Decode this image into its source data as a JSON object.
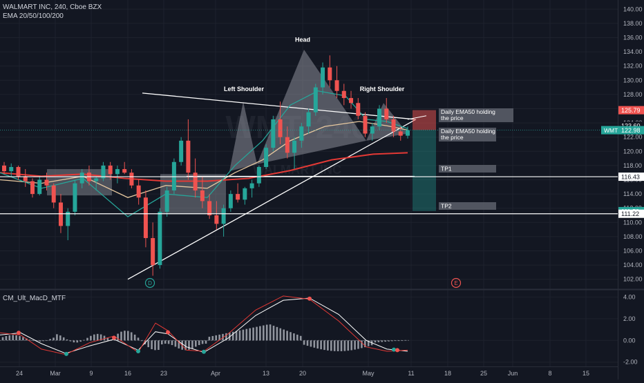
{
  "header": {
    "symbol_line": "WALMART INC, 240, Cboe BZX",
    "indicator_line": "EMA 20/50/100/200",
    "macd_label": "CM_Ult_MacD_MTF"
  },
  "colors": {
    "background": "#131722",
    "up": "#26a69a",
    "down": "#ef5350",
    "ema20": "#26a69a",
    "ema50": "#e8c9a0",
    "ema100": "#e53935",
    "ema200": "#e53935",
    "grid": "#1e222d",
    "macd_fast": "#e53935",
    "macd_signal": "#ffffff",
    "histogram": "#b2b5be"
  },
  "chart_data": {
    "type": "candlestick",
    "symbol": "WMT",
    "timeframe": "240",
    "exchange": "Cboe BZX",
    "y_axis": {
      "ylim": [
        101,
        141
      ],
      "ticks": [
        102,
        104,
        106,
        108,
        110,
        112,
        114,
        116,
        118,
        120,
        122,
        124,
        126,
        128,
        130,
        132,
        134,
        136,
        138,
        140
      ],
      "tick_labels": [
        "102.00",
        "104.00",
        "106.00",
        "108.00",
        "110.00",
        "112.00",
        "114.00",
        "116.00",
        "118.00",
        "120.00",
        "122.00",
        "124.00",
        "126.00",
        "128.00",
        "130.00",
        "132.00",
        "134.00",
        "136.00",
        "138.00",
        "140.00"
      ]
    },
    "x_axis": {
      "tick_labels": [
        "24",
        "Mar",
        "9",
        "16",
        "23",
        "Apr",
        "13",
        "20",
        "May",
        "11",
        "18",
        "25",
        "Jun",
        "8",
        "15"
      ]
    },
    "price_labels": [
      {
        "value": 125.79,
        "text": "125.79",
        "color": "#ef5350"
      },
      {
        "value": 123.6,
        "text": "123.60",
        "color": "#131722"
      },
      {
        "value": 122.98,
        "text": "122.98",
        "ticker": "WMT",
        "color": "#26a69a"
      },
      {
        "value": 116.43,
        "text": "116.43",
        "color": "#ffffff"
      },
      {
        "value": 111.59,
        "text": "111.59",
        "color": "#26a69a"
      },
      {
        "value": 111.22,
        "text": "111.22",
        "color": "#ffffff"
      }
    ],
    "horizontal_levels": [
      {
        "value": 116.43
      },
      {
        "value": 111.22
      }
    ],
    "candles_approx": [
      [
        118.0,
        118.5,
        116.8,
        117.2
      ],
      [
        117.2,
        118.3,
        116.5,
        117.8
      ],
      [
        117.8,
        118.0,
        116.0,
        116.5
      ],
      [
        116.5,
        117.5,
        115.0,
        115.8
      ],
      [
        115.8,
        116.2,
        113.5,
        114.0
      ],
      [
        114.0,
        116.5,
        113.8,
        116.0
      ],
      [
        116.0,
        117.0,
        114.5,
        115.2
      ],
      [
        115.2,
        115.5,
        112.0,
        112.8
      ],
      [
        112.8,
        114.0,
        108.5,
        109.5
      ],
      [
        109.5,
        112.0,
        107.5,
        111.5
      ],
      [
        111.5,
        116.0,
        111.0,
        115.5
      ],
      [
        115.5,
        117.5,
        114.8,
        117.0
      ],
      [
        117.0,
        118.0,
        115.2,
        115.8
      ],
      [
        115.8,
        116.5,
        114.5,
        116.2
      ],
      [
        116.2,
        118.5,
        115.8,
        118.0
      ],
      [
        118.0,
        118.5,
        116.0,
        116.8
      ],
      [
        116.8,
        118.0,
        115.5,
        117.5
      ],
      [
        117.5,
        118.5,
        116.8,
        117.0
      ],
      [
        117.0,
        117.5,
        114.8,
        115.2
      ],
      [
        115.2,
        116.0,
        112.5,
        113.5
      ],
      [
        113.5,
        114.5,
        106.5,
        107.8
      ],
      [
        107.8,
        110.0,
        102.5,
        104.0
      ],
      [
        104.0,
        112.0,
        103.5,
        111.5
      ],
      [
        111.5,
        115.0,
        110.8,
        114.5
      ],
      [
        114.5,
        119.0,
        114.0,
        118.5
      ],
      [
        118.5,
        122.0,
        118.0,
        121.5
      ],
      [
        121.5,
        124.5,
        116.0,
        117.0
      ],
      [
        117.0,
        119.0,
        113.5,
        114.5
      ],
      [
        114.5,
        116.5,
        112.0,
        113.0
      ],
      [
        113.0,
        114.0,
        110.5,
        111.0
      ],
      [
        111.0,
        113.0,
        109.0,
        109.8
      ],
      [
        109.8,
        112.5,
        108.0,
        112.0
      ],
      [
        112.0,
        114.5,
        111.5,
        114.0
      ],
      [
        114.0,
        115.5,
        112.8,
        113.2
      ],
      [
        113.2,
        115.0,
        112.5,
        114.8
      ],
      [
        114.8,
        116.0,
        113.5,
        115.5
      ],
      [
        115.5,
        118.0,
        115.0,
        117.8
      ],
      [
        117.8,
        121.0,
        117.5,
        120.5
      ],
      [
        120.5,
        125.0,
        120.0,
        124.5
      ],
      [
        124.5,
        127.0,
        121.0,
        122.0
      ],
      [
        122.0,
        123.5,
        119.0,
        119.8
      ],
      [
        119.8,
        122.0,
        117.5,
        121.5
      ],
      [
        121.5,
        124.0,
        120.5,
        123.5
      ],
      [
        123.5,
        126.0,
        122.5,
        125.5
      ],
      [
        125.5,
        129.5,
        125.0,
        129.0
      ],
      [
        129.0,
        132.5,
        128.0,
        131.8
      ],
      [
        131.8,
        133.5,
        129.0,
        130.0
      ],
      [
        130.0,
        132.0,
        127.5,
        128.5
      ],
      [
        128.5,
        129.5,
        126.5,
        127.5
      ],
      [
        127.5,
        128.5,
        126.0,
        126.8
      ],
      [
        126.8,
        127.5,
        124.5,
        125.0
      ],
      [
        125.0,
        125.5,
        122.0,
        122.5
      ],
      [
        122.5,
        124.0,
        121.5,
        123.5
      ],
      [
        123.5,
        126.5,
        123.0,
        126.0
      ],
      [
        126.0,
        127.5,
        124.0,
        124.5
      ],
      [
        124.5,
        125.0,
        122.0,
        122.8
      ],
      [
        122.8,
        123.5,
        121.5,
        122.2
      ],
      [
        122.2,
        123.5,
        121.8,
        122.98
      ]
    ],
    "annotations": [
      {
        "text": "Left Shoulder"
      },
      {
        "text": "Head"
      },
      {
        "text": "Right Shoulder"
      },
      {
        "text": "Daily EMA50 holding the price",
        "line1": "Daily EMA50 holding",
        "line2": "the price"
      },
      {
        "text": "Daily EMA50 holding the price",
        "line1": "Daily EMA50 holding",
        "line2": "the price"
      },
      {
        "text": "TP1"
      },
      {
        "text": "TP2"
      }
    ],
    "event_markers": [
      "D",
      "E"
    ],
    "macd": {
      "ylim": [
        -2.4,
        4.6
      ],
      "ticks": [
        4,
        2,
        0,
        -2
      ],
      "tick_labels": [
        "4.00",
        "2.00",
        "0.00",
        "-2.00"
      ]
    },
    "watermark": "WMT, 240",
    "watermark_sub": "WALMART INC"
  }
}
